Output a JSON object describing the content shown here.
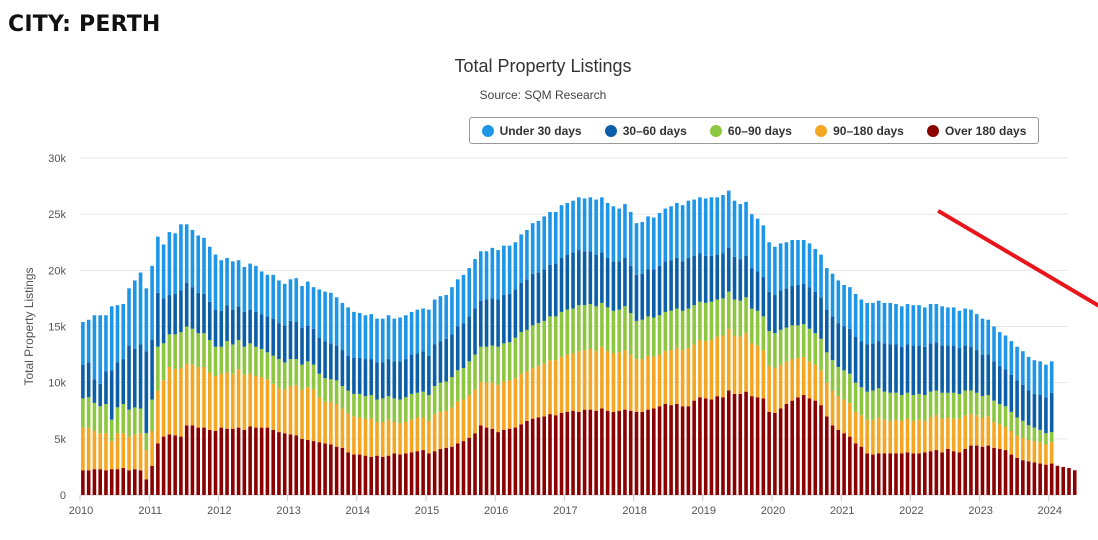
{
  "heading": "CITY: PERTH",
  "chart_data": {
    "type": "bar",
    "stacked": true,
    "title": "Total Property Listings",
    "subtitle": "Source: SQM Research",
    "ylabel": "Total Property Listings",
    "xlabel": "",
    "ylim": [
      0,
      30000
    ],
    "yticks": [
      0,
      5000,
      10000,
      15000,
      20000,
      25000,
      30000
    ],
    "ytick_labels": [
      "0",
      "5k",
      "10k",
      "15k",
      "20k",
      "25k",
      "30k"
    ],
    "xtick_labels": [
      "2010",
      "2011",
      "2012",
      "2013",
      "2014",
      "2015",
      "2016",
      "2017",
      "2018",
      "2019",
      "2020",
      "2021",
      "2022",
      "2023",
      "2024"
    ],
    "x_start": "2010-01",
    "frequency": "monthly",
    "grid": true,
    "legend_position": "top-right",
    "annotation": "red downward arrow indicating a declining trend from mid-2022 to 2024",
    "series": [
      {
        "name": "Over 180 days",
        "color": "#8b0000",
        "values": [
          2200,
          2200,
          2300,
          2300,
          2200,
          2300,
          2300,
          2400,
          2200,
          2300,
          2200,
          1400,
          2600,
          4600,
          5200,
          5400,
          5300,
          5200,
          6200,
          6200,
          6000,
          6000,
          5800,
          5700,
          6000,
          5900,
          5900,
          6000,
          5800,
          6100,
          6000,
          6000,
          6000,
          5800,
          5600,
          5500,
          5400,
          5300,
          5000,
          4900,
          4800,
          4700,
          4600,
          4500,
          4300,
          4200,
          3800,
          3600,
          3600,
          3500,
          3400,
          3500,
          3400,
          3500,
          3700,
          3600,
          3700,
          3800,
          3900,
          4000,
          3700,
          3900,
          4100,
          4200,
          4300,
          4600,
          4800,
          5100,
          5500,
          6200,
          6000,
          5900,
          5600,
          5800,
          5900,
          6000,
          6300,
          6600,
          6800,
          6900,
          7000,
          7200,
          7100,
          7300,
          7400,
          7500,
          7400,
          7600,
          7600,
          7500,
          7700,
          7500,
          7400,
          7500,
          7600,
          7500,
          7400,
          7400,
          7600,
          7700,
          7900,
          8100,
          8000,
          8100,
          7900,
          7900,
          8400,
          8700,
          8600,
          8500,
          8800,
          8700,
          9300,
          9000,
          9000,
          9200,
          8800,
          8700,
          8600,
          7400,
          7300,
          7700,
          8100,
          8400,
          8700,
          8900,
          8600,
          8400,
          8000,
          7000,
          6200,
          5800,
          5500,
          5200,
          4600,
          4300,
          3700,
          3600,
          3700,
          3700,
          3700,
          3700,
          3700,
          3800,
          3700,
          3700,
          3800,
          3900,
          4000,
          3800,
          4100,
          3900,
          3800,
          4100,
          4400,
          4400,
          4300,
          4400,
          4200,
          4100,
          4000,
          3600,
          3300,
          3100,
          3000,
          2900,
          2800,
          2700,
          2800,
          2600,
          2500,
          2400,
          2200
        ]
      },
      {
        "name": "90–180 days",
        "color": "#f5a623",
        "values": [
          3800,
          3800,
          3400,
          3200,
          3300,
          2500,
          3200,
          3100,
          3000,
          3100,
          3300,
          2600,
          3100,
          4700,
          5000,
          6000,
          5900,
          6100,
          5500,
          5400,
          5400,
          5400,
          5100,
          4900,
          4800,
          5000,
          4900,
          5200,
          4900,
          4700,
          4600,
          4500,
          4300,
          4100,
          3900,
          3900,
          4300,
          4500,
          4400,
          4700,
          4600,
          4000,
          3700,
          3800,
          3800,
          3500,
          3500,
          3400,
          3300,
          3300,
          3400,
          3000,
          3100,
          3200,
          2800,
          2800,
          2800,
          2900,
          3000,
          2900,
          2900,
          3300,
          3300,
          3300,
          3500,
          3700,
          3700,
          3800,
          3900,
          3900,
          4000,
          4100,
          4200,
          4300,
          4300,
          4400,
          4500,
          4400,
          4500,
          4600,
          4700,
          4800,
          4900,
          5000,
          5100,
          5100,
          5400,
          5300,
          5400,
          5300,
          5500,
          5300,
          5200,
          5200,
          5300,
          5000,
          4700,
          4700,
          4800,
          4600,
          4600,
          4700,
          4900,
          5000,
          5000,
          5200,
          5000,
          5100,
          5100,
          5300,
          5300,
          5500,
          5500,
          5200,
          5100,
          5200,
          4700,
          4600,
          4300,
          4100,
          4000,
          3900,
          3800,
          3700,
          3500,
          3400,
          3300,
          3200,
          3100,
          3000,
          3100,
          3000,
          3000,
          3000,
          2800,
          2800,
          3000,
          3100,
          3200,
          3000,
          2900,
          3000,
          2900,
          3000,
          2900,
          3000,
          2800,
          3000,
          3100,
          3000,
          2800,
          2900,
          3000,
          3000,
          2800,
          2700,
          2600,
          2600,
          2300,
          2200,
          2100,
          2100,
          2000,
          2000,
          1900,
          1900,
          1900,
          1800,
          1900
        ]
      },
      {
        "name": "60–90 days",
        "color": "#8dc63f",
        "values": [
          2600,
          2700,
          2500,
          2400,
          2600,
          1900,
          2300,
          2600,
          2400,
          2400,
          2200,
          1500,
          2800,
          3900,
          3300,
          2900,
          3100,
          3200,
          3300,
          3200,
          3000,
          3000,
          2900,
          2600,
          2400,
          2800,
          2600,
          2600,
          2500,
          2700,
          2600,
          2500,
          2400,
          2500,
          2600,
          2400,
          2400,
          2300,
          2200,
          2300,
          2200,
          2100,
          2100,
          2000,
          2100,
          2000,
          2000,
          2000,
          2100,
          2000,
          2100,
          2000,
          2100,
          2100,
          2100,
          2100,
          2200,
          2300,
          2200,
          2300,
          2300,
          2500,
          2600,
          2600,
          2700,
          2800,
          2800,
          3000,
          3100,
          3100,
          3200,
          3300,
          3400,
          3400,
          3400,
          3600,
          3700,
          3700,
          3800,
          3800,
          3800,
          3900,
          3900,
          4000,
          4000,
          4000,
          4100,
          4000,
          4000,
          4000,
          3900,
          3900,
          3800,
          3800,
          3900,
          3700,
          3400,
          3500,
          3500,
          3500,
          3500,
          3500,
          3500,
          3500,
          3500,
          3500,
          3500,
          3400,
          3400,
          3400,
          3300,
          3300,
          3300,
          3200,
          3200,
          3200,
          3100,
          3100,
          3000,
          3100,
          3100,
          3100,
          3000,
          3000,
          2900,
          2900,
          2900,
          2800,
          2800,
          2700,
          2700,
          2600,
          2600,
          2600,
          2600,
          2500,
          2500,
          2600,
          2600,
          2500,
          2500,
          2400,
          2300,
          2300,
          2300,
          2300,
          2300,
          2300,
          2200,
          2300,
          2200,
          2300,
          2200,
          2200,
          2100,
          2000,
          1900,
          1900,
          1900,
          1800,
          1800,
          1700,
          1600,
          1500,
          1300,
          1200,
          1100,
          1000,
          900
        ]
      },
      {
        "name": "30–60 days",
        "color": "#0b5fa8",
        "values": [
          3000,
          3100,
          2100,
          2000,
          2900,
          4400,
          4000,
          4000,
          5700,
          5200,
          5700,
          7300,
          5300,
          4800,
          4000,
          3500,
          3600,
          3700,
          3900,
          3700,
          3600,
          3500,
          3400,
          3300,
          3200,
          3200,
          3100,
          3000,
          3100,
          3000,
          3100,
          3100,
          3200,
          3300,
          3200,
          3300,
          3400,
          3300,
          3300,
          3200,
          3200,
          3200,
          3300,
          3200,
          3100,
          3200,
          3100,
          3200,
          3200,
          3300,
          3200,
          3300,
          3200,
          3300,
          3300,
          3400,
          3400,
          3500,
          3500,
          3600,
          3500,
          3700,
          3700,
          3800,
          3800,
          3900,
          4000,
          4000,
          4100,
          4100,
          4200,
          4200,
          4200,
          4300,
          4300,
          4300,
          4400,
          4500,
          4600,
          4500,
          4600,
          4600,
          4700,
          4800,
          4900,
          5000,
          4900,
          4800,
          4700,
          4600,
          4500,
          4400,
          4400,
          4300,
          4300,
          4200,
          4100,
          4100,
          4200,
          4300,
          4400,
          4500,
          4500,
          4500,
          4400,
          4500,
          4400,
          4300,
          4200,
          4100,
          4000,
          4000,
          3900,
          3800,
          3700,
          3700,
          3600,
          3500,
          3500,
          3500,
          3400,
          3500,
          3500,
          3500,
          3600,
          3600,
          3700,
          3700,
          3700,
          3800,
          3900,
          3900,
          3900,
          4000,
          4100,
          4100,
          4200,
          4200,
          4200,
          4300,
          4300,
          4300,
          4300,
          4300,
          4400,
          4300,
          4300,
          4300,
          4300,
          4200,
          4200,
          4200,
          4100,
          4000,
          3900,
          3800,
          3700,
          3600,
          3500,
          3400,
          3300,
          3300,
          3300,
          3200,
          3100,
          3000,
          3100,
          3200,
          3500
        ]
      },
      {
        "name": "Under 30 days",
        "color": "#1e96e8",
        "values": [
          3800,
          3800,
          5700,
          6100,
          5000,
          5700,
          5100,
          4900,
          5100,
          6100,
          6400,
          5600,
          6600,
          5000,
          4800,
          5600,
          5400,
          5900,
          5200,
          5100,
          5100,
          5000,
          4900,
          4900,
          4500,
          4200,
          4300,
          4100,
          4000,
          4100,
          4100,
          3800,
          3700,
          3900,
          3800,
          3700,
          3700,
          3900,
          3700,
          3900,
          3700,
          4300,
          4400,
          4500,
          4300,
          4200,
          4300,
          4100,
          4000,
          3900,
          4000,
          3900,
          3900,
          3900,
          3800,
          3900,
          3900,
          3800,
          3900,
          3800,
          4100,
          4000,
          4000,
          3900,
          4200,
          4200,
          4300,
          4300,
          4400,
          4400,
          4300,
          4500,
          4400,
          4400,
          4300,
          4200,
          4300,
          4400,
          4500,
          4600,
          4700,
          4700,
          4600,
          4700,
          4600,
          4600,
          4700,
          4700,
          4800,
          4900,
          4900,
          4900,
          4900,
          4700,
          4800,
          4800,
          4600,
          4600,
          4700,
          4600,
          4700,
          4700,
          4800,
          4900,
          5000,
          5100,
          5000,
          5000,
          5100,
          5200,
          5100,
          5200,
          5100,
          5000,
          4900,
          4800,
          4800,
          4700,
          4600,
          4400,
          4300,
          4200,
          4100,
          4100,
          4000,
          3900,
          3900,
          3800,
          3800,
          3700,
          3800,
          3800,
          3700,
          3700,
          3800,
          3700,
          3700,
          3600,
          3600,
          3600,
          3700,
          3600,
          3600,
          3600,
          3600,
          3600,
          3500,
          3500,
          3400,
          3500,
          3400,
          3400,
          3300,
          3300,
          3300,
          3200,
          3200,
          3100,
          3100,
          3000,
          3000,
          3000,
          3000,
          3000,
          3000,
          3000,
          3000,
          2900,
          2800
        ]
      }
    ]
  }
}
